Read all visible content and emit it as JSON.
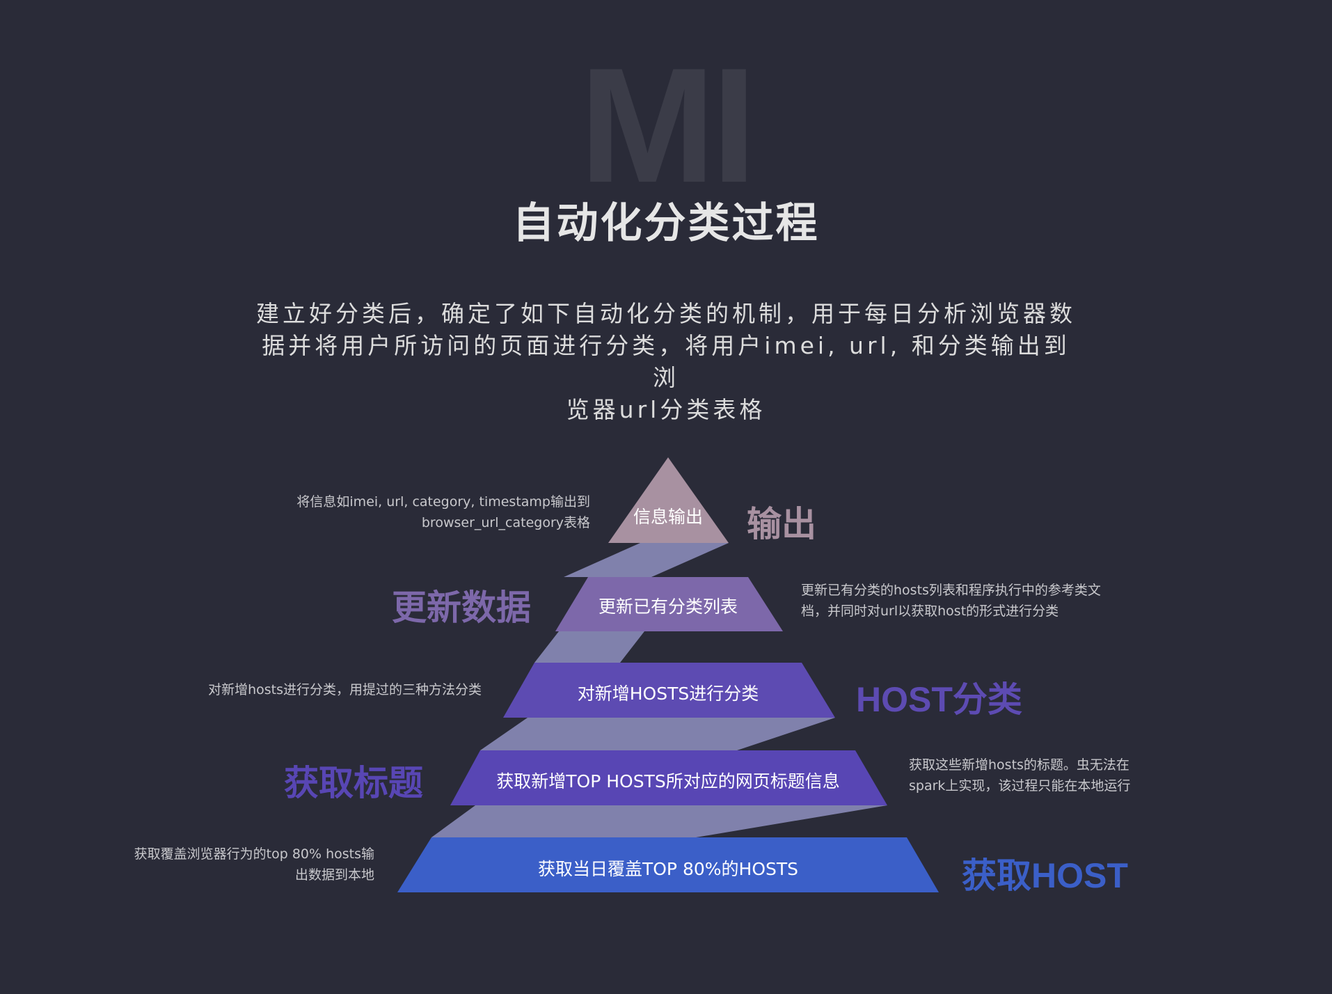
{
  "watermark": "MI",
  "title": "自动化分类过程",
  "description_lines": [
    "建立好分类后，确定了如下自动化分类的机制，用于每日分析浏览器数",
    "据并将用户所访问的页面进行分类，将用户imei, url, 和分类输出到浏",
    "览器url分类表格"
  ],
  "colors": {
    "level1": "#a891a1",
    "level2": "#7d68aa",
    "level3": "#5d4bb2",
    "level4": "#5846b4",
    "level5": "#3b5fc8",
    "connector": "#9d9fd3"
  },
  "levels": [
    {
      "text": "信息输出",
      "label": "输出",
      "note_lines": [
        "将信息如imei, url, category, timestamp输出到",
        "browser_url_category表格"
      ]
    },
    {
      "text": "更新已有分类列表",
      "label": "更新数据",
      "note_lines": [
        "更新已有分类的hosts列表和程序执行中的参考类文",
        "档，并同时对url以获取host的形式进行分类"
      ]
    },
    {
      "text": "对新增HOSTS进行分类",
      "label": "HOST分类",
      "note_lines": [
        "对新增hosts进行分类，用提过的三种方法分类"
      ]
    },
    {
      "text": "获取新增TOP HOSTS所对应的网页标题信息",
      "label": "获取标题",
      "note_lines": [
        "获取这些新增hosts的标题。虫无法在",
        "spark上实现，该过程只能在本地运行"
      ]
    },
    {
      "text": "获取当日覆盖TOP 80%的HOSTS",
      "label": "获取HOST",
      "note_lines": [
        "获取覆盖浏览器行为的top 80% hosts输",
        "出数据到本地"
      ]
    }
  ]
}
